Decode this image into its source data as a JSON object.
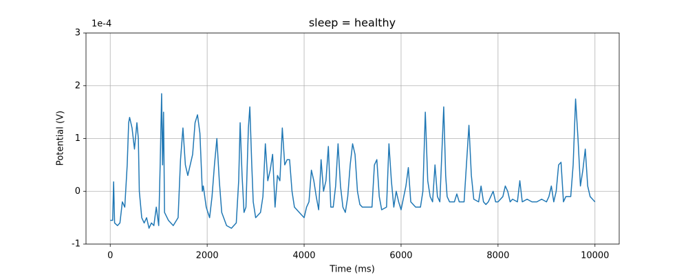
{
  "chart_data": {
    "type": "line",
    "title": "sleep = healthy",
    "x_label": "Time (ms)",
    "y_label": "Potential (V)",
    "y_offset_label": "1e-4",
    "color": "#1f77b4",
    "grid": true,
    "xlim": [
      -500,
      10500
    ],
    "xticks": [
      0,
      2000,
      4000,
      6000,
      8000,
      10000
    ],
    "ylim": [
      -1,
      3
    ],
    "yticks": [
      -1,
      0,
      1,
      2,
      3
    ],
    "x": [
      0,
      50,
      70,
      90,
      150,
      200,
      250,
      300,
      350,
      380,
      400,
      450,
      500,
      550,
      580,
      600,
      650,
      700,
      750,
      800,
      850,
      900,
      950,
      1000,
      1030,
      1060,
      1080,
      1100,
      1120,
      1200,
      1300,
      1400,
      1450,
      1500,
      1550,
      1600,
      1700,
      1750,
      1800,
      1850,
      1900,
      1920,
      1980,
      2050,
      2100,
      2150,
      2200,
      2250,
      2300,
      2400,
      2500,
      2600,
      2650,
      2680,
      2720,
      2760,
      2800,
      2850,
      2880,
      2920,
      2950,
      3000,
      3100,
      3150,
      3200,
      3250,
      3300,
      3350,
      3400,
      3450,
      3500,
      3550,
      3600,
      3650,
      3700,
      3750,
      3800,
      3900,
      4000,
      4050,
      4100,
      4150,
      4200,
      4250,
      4300,
      4350,
      4400,
      4450,
      4500,
      4550,
      4600,
      4650,
      4700,
      4750,
      4800,
      4850,
      4900,
      4950,
      5000,
      5050,
      5100,
      5150,
      5200,
      5300,
      5400,
      5450,
      5500,
      5550,
      5600,
      5700,
      5750,
      5800,
      5850,
      5900,
      5950,
      6000,
      6100,
      6150,
      6200,
      6300,
      6400,
      6450,
      6500,
      6550,
      6600,
      6650,
      6700,
      6750,
      6800,
      6880,
      6920,
      6950,
      7000,
      7100,
      7150,
      7200,
      7300,
      7400,
      7450,
      7500,
      7600,
      7650,
      7700,
      7750,
      7800,
      7900,
      7950,
      8000,
      8100,
      8150,
      8200,
      8250,
      8300,
      8400,
      8450,
      8500,
      8600,
      8700,
      8800,
      8900,
      9000,
      9050,
      9100,
      9150,
      9200,
      9250,
      9300,
      9350,
      9400,
      9500,
      9550,
      9600,
      9650,
      9700,
      9750,
      9800,
      9850,
      9900,
      9950,
      10000
    ],
    "values": [
      -0.55,
      -0.55,
      0.18,
      -0.6,
      -0.65,
      -0.6,
      -0.2,
      -0.3,
      0.5,
      1.3,
      1.4,
      1.2,
      0.8,
      1.3,
      1.0,
      0.0,
      -0.5,
      -0.6,
      -0.5,
      -0.7,
      -0.6,
      -0.65,
      -0.3,
      -0.65,
      0.5,
      1.85,
      0.5,
      1.5,
      -0.4,
      -0.55,
      -0.65,
      -0.5,
      0.6,
      1.2,
      0.5,
      0.3,
      0.7,
      1.3,
      1.45,
      1.1,
      0.0,
      0.1,
      -0.3,
      -0.5,
      -0.1,
      0.5,
      1.0,
      0.2,
      -0.4,
      -0.65,
      -0.7,
      -0.6,
      0.2,
      1.3,
      0.3,
      -0.4,
      -0.3,
      1.2,
      1.6,
      0.5,
      -0.2,
      -0.5,
      -0.4,
      -0.1,
      0.9,
      0.2,
      0.4,
      0.7,
      -0.3,
      0.3,
      0.2,
      1.2,
      0.5,
      0.6,
      0.6,
      0.0,
      -0.3,
      -0.4,
      -0.5,
      -0.3,
      -0.2,
      0.4,
      0.2,
      -0.1,
      -0.35,
      0.6,
      0.0,
      0.2,
      0.85,
      -0.3,
      -0.3,
      0.1,
      0.9,
      0.1,
      -0.3,
      -0.4,
      -0.1,
      0.5,
      0.9,
      0.7,
      0.0,
      -0.25,
      -0.3,
      -0.3,
      -0.3,
      0.5,
      0.6,
      -0.1,
      -0.35,
      -0.3,
      0.9,
      0.2,
      -0.3,
      0.0,
      -0.2,
      -0.35,
      0.1,
      0.45,
      -0.2,
      -0.3,
      -0.3,
      0.0,
      1.5,
      0.2,
      -0.1,
      -0.2,
      0.5,
      -0.1,
      -0.2,
      1.6,
      0.3,
      -0.1,
      -0.2,
      -0.2,
      -0.05,
      -0.2,
      -0.2,
      1.25,
      0.3,
      -0.15,
      -0.2,
      0.1,
      -0.2,
      -0.25,
      -0.2,
      0.0,
      -0.2,
      -0.2,
      -0.1,
      0.1,
      0.0,
      -0.2,
      -0.15,
      -0.2,
      0.2,
      -0.2,
      -0.15,
      -0.2,
      -0.2,
      -0.15,
      -0.2,
      -0.1,
      0.1,
      -0.2,
      0.0,
      0.5,
      0.55,
      -0.2,
      -0.1,
      -0.1,
      0.5,
      1.75,
      1.0,
      0.1,
      0.4,
      0.8,
      0.1,
      -0.1,
      -0.15,
      -0.2
    ]
  }
}
